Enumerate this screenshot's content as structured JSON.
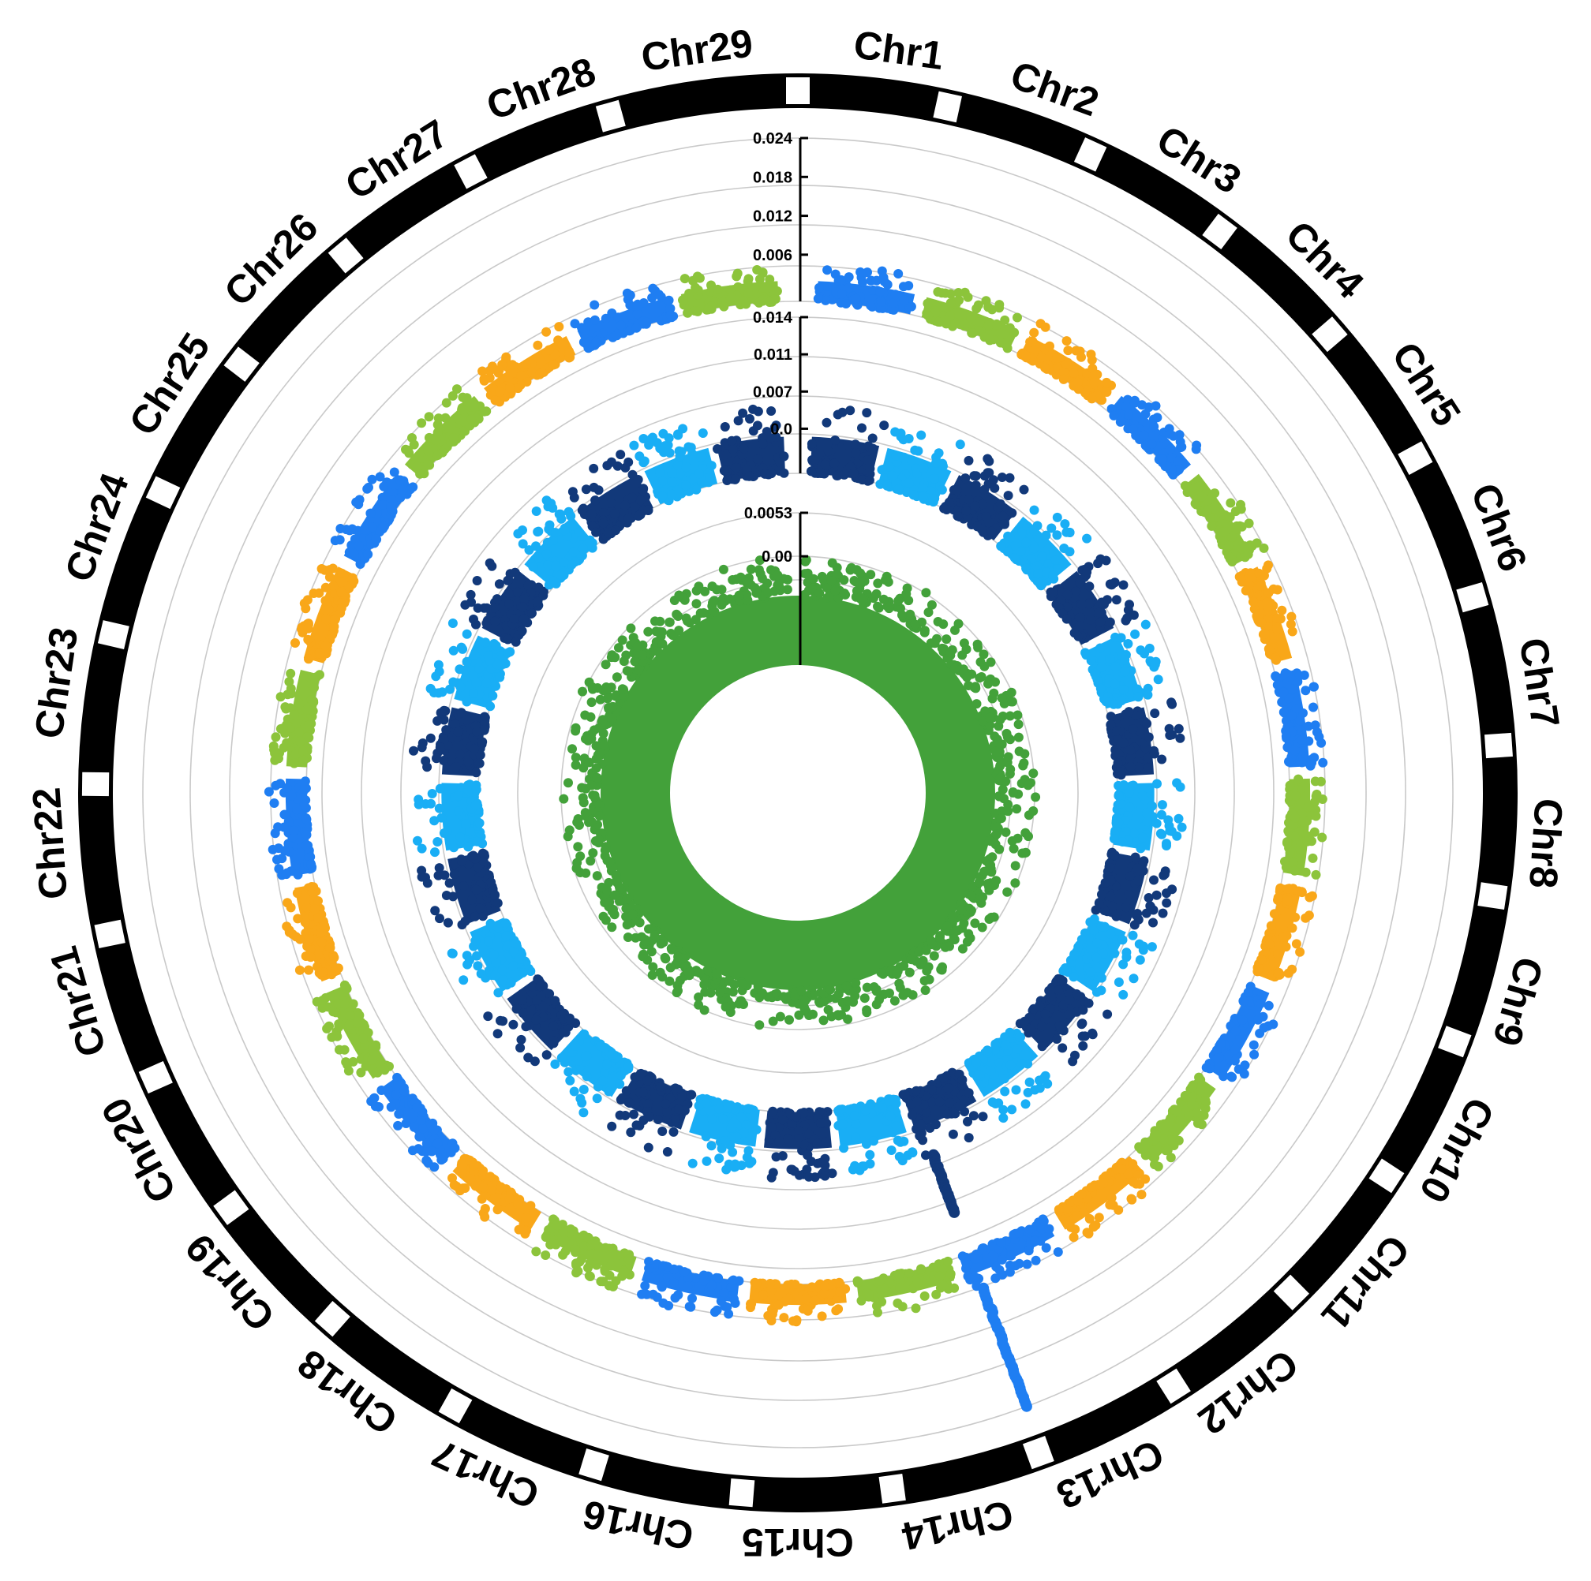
{
  "chart_data": {
    "type": "circular-manhattan",
    "title": "",
    "chromosomes": [
      "Chr1",
      "Chr2",
      "Chr3",
      "Chr4",
      "Chr5",
      "Chr6",
      "Chr7",
      "Chr8",
      "Chr9",
      "Chr10",
      "Chr11",
      "Chr12",
      "Chr13",
      "Chr14",
      "Chr15",
      "Chr16",
      "Chr17",
      "Chr18",
      "Chr19",
      "Chr20",
      "Chr21",
      "Chr22",
      "Chr23",
      "Chr24",
      "Chr25",
      "Chr26",
      "Chr27",
      "Chr28",
      "Chr29"
    ],
    "rings": [
      {
        "ring": "outer",
        "ticks": [
          "0.024",
          "0.018",
          "0.012",
          "0.006"
        ],
        "ylim": [
          0,
          0.024
        ],
        "palette": [
          "#1f7ef2",
          "#8cc43b",
          "#f9a719"
        ],
        "typical_max": 0.0055,
        "peaks": [
          {
            "chr": "Chr13",
            "value": 0.024
          }
        ]
      },
      {
        "ring": "middle",
        "ticks": [
          "0.014",
          "0.011",
          "0.007",
          "0.0"
        ],
        "ylim": [
          0,
          0.014
        ],
        "palette": [
          "#12397a",
          "#19aef5"
        ],
        "typical_max": 0.006,
        "peaks": [
          {
            "chr": "Chr13",
            "value": 0.0115
          }
        ]
      },
      {
        "ring": "inner",
        "ticks": [
          "0.0053",
          "0.00"
        ],
        "ylim": [
          0,
          0.0053
        ],
        "palette": [
          "#43a13a"
        ],
        "typical_max": 0.0022,
        "peaks": []
      }
    ]
  }
}
